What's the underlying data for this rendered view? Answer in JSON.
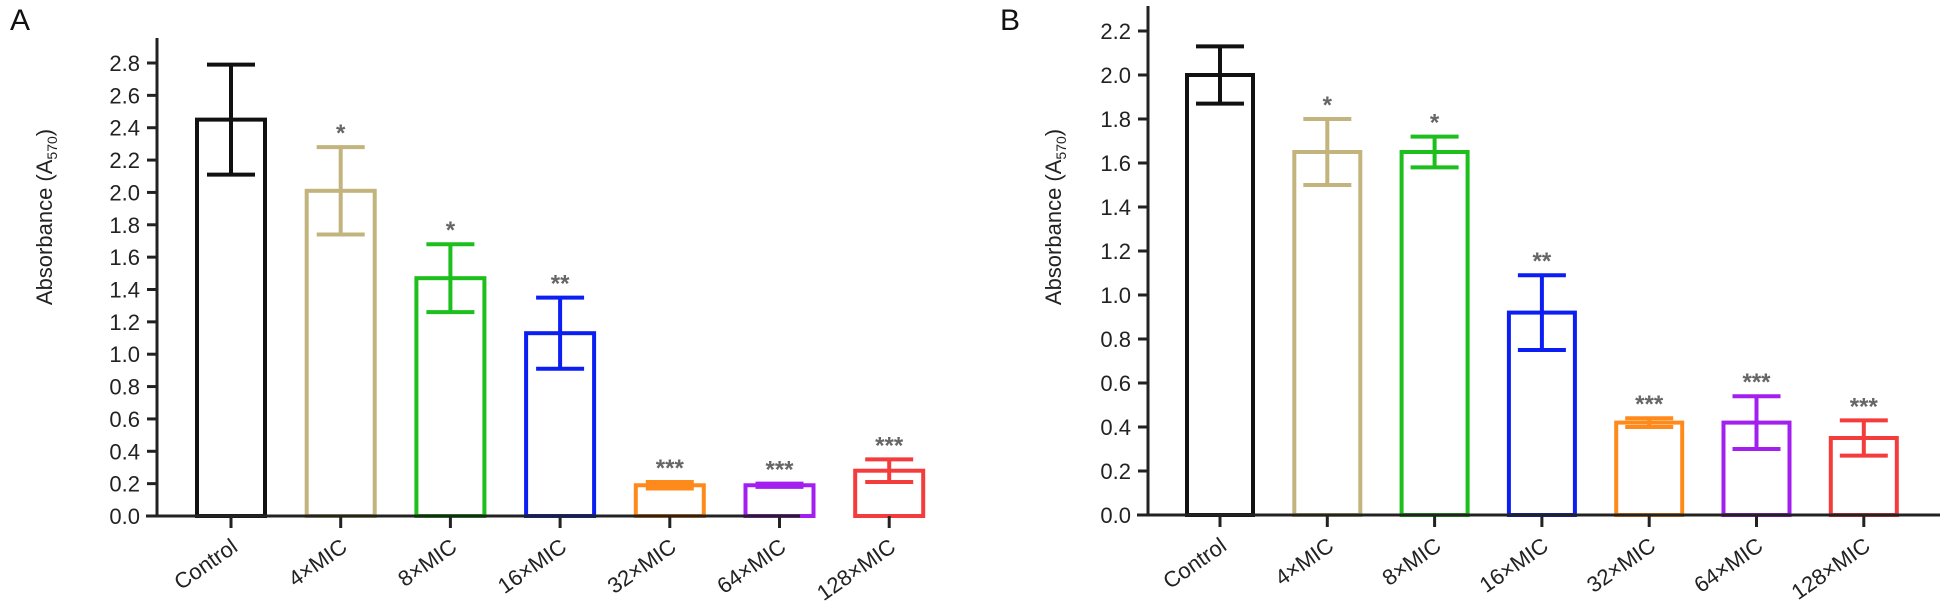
{
  "chart_data": [
    {
      "type": "bar",
      "panel": "A",
      "title": "",
      "xlabel": "",
      "ylabel": "Absorbance (A570)",
      "ylabel_main": "Absorbance (A",
      "ylabel_sub": "570",
      "ylabel_close": ")",
      "ylim": [
        0,
        2.8
      ],
      "yticks": [
        "0.0",
        "0.2",
        "0.4",
        "0.6",
        "0.8",
        "1.0",
        "1.2",
        "1.4",
        "1.6",
        "1.8",
        "2.0",
        "2.2",
        "2.4",
        "2.6",
        "2.8"
      ],
      "grid": false,
      "categories": [
        "Control",
        "4×MIC",
        "8×MIC",
        "16×MIC",
        "32×MIC",
        "64×MIC",
        "128×MIC"
      ],
      "values": [
        2.45,
        2.01,
        1.47,
        1.13,
        0.19,
        0.19,
        0.28
      ],
      "errors": [
        0.34,
        0.27,
        0.21,
        0.22,
        0.02,
        0.01,
        0.07
      ],
      "significance": [
        "",
        "*",
        "*",
        "**",
        "***",
        "***",
        "***"
      ],
      "colors": [
        "#111111",
        "#c2b47c",
        "#1dbf1d",
        "#0b1ff2",
        "#ff8a1c",
        "#a31ff0",
        "#f43c3c"
      ]
    },
    {
      "type": "bar",
      "panel": "B",
      "title": "",
      "xlabel": "",
      "ylabel": "Absorbance (A570)",
      "ylabel_main": "Absorbance (A",
      "ylabel_sub": "570",
      "ylabel_close": ")",
      "ylim": [
        0,
        2.2
      ],
      "yticks": [
        "0.0",
        "0.2",
        "0.4",
        "0.6",
        "0.8",
        "1.0",
        "1.2",
        "1.4",
        "1.6",
        "1.8",
        "2.0",
        "2.2"
      ],
      "grid": false,
      "categories": [
        "Control",
        "4×MIC",
        "8×MIC",
        "16×MIC",
        "32×MIC",
        "64×MIC",
        "128×MIC"
      ],
      "values": [
        2.0,
        1.65,
        1.65,
        0.92,
        0.42,
        0.42,
        0.35
      ],
      "errors": [
        0.13,
        0.15,
        0.07,
        0.17,
        0.02,
        0.12,
        0.08
      ],
      "significance": [
        "",
        "*",
        "*",
        "**",
        "***",
        "***",
        "***"
      ],
      "colors": [
        "#111111",
        "#c2b47c",
        "#1dbf1d",
        "#0b1ff2",
        "#ff8a1c",
        "#a31ff0",
        "#f43c3c"
      ]
    }
  ]
}
